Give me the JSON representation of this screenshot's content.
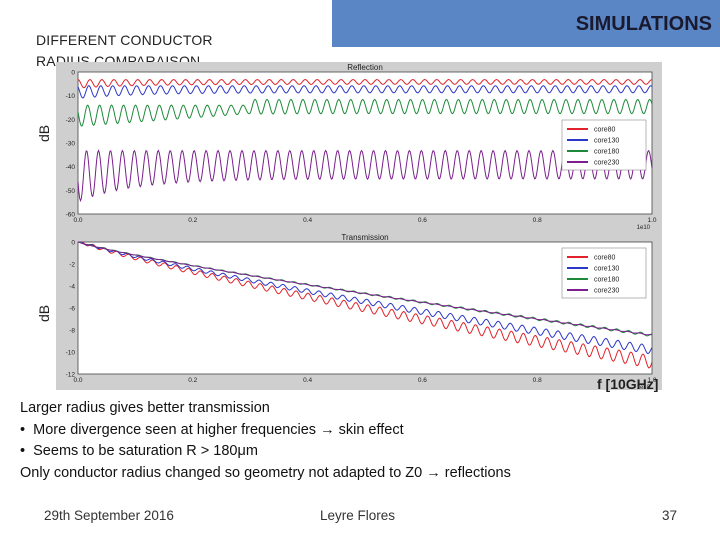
{
  "slide": {
    "title": "SIMULATIONS",
    "subtitle_line1": "DIFFERENT CONDUCTOR",
    "subtitle_line2": "RADIUS COMPARAISON",
    "ylabel_top": "dB",
    "ylabel_bottom": "dB",
    "freq_label": "f [10GHz]",
    "body": [
      "Larger radius gives better transmission",
      "More divergence seen at higher frequencies → skin effect",
      "Seems to be saturation R > 180μm",
      "Only conductor radius changed so geometry not adapted to Z0 → reflections"
    ],
    "footer_date": "29th September 2016",
    "footer_author": "Leyre Flores",
    "footer_page": "37"
  },
  "colors": {
    "banner": "#5b86c6",
    "core80": "#e0232a",
    "core130": "#2a36c8",
    "core180": "#1d8a3a",
    "core230": "#7a1f8c"
  },
  "chart_data": [
    {
      "type": "line",
      "title": "Reflection",
      "xlabel": "",
      "ylabel": "dB",
      "xlim": [
        0.0,
        1.0
      ],
      "ylim": [
        -60,
        0
      ],
      "x_ticks": [
        "0.0",
        "0.2",
        "0.4",
        "0.6",
        "0.8",
        "1.0"
      ],
      "y_ticks": [
        "0",
        "-10",
        "-20",
        "-30",
        "-40",
        "-50",
        "-60"
      ],
      "x_multiplier": "1e10",
      "legend": "right",
      "series": [
        {
          "name": "core80",
          "color": "#e0232a",
          "mean": -4,
          "ripple": 2
        },
        {
          "name": "core130",
          "color": "#2a36c8",
          "mean": -7,
          "ripple": 3
        },
        {
          "name": "core180",
          "color": "#1d8a3a",
          "mean": -14,
          "ripple": 6
        },
        {
          "name": "core230",
          "color": "#7a1f8c",
          "mean": -38,
          "ripple": 12
        }
      ]
    },
    {
      "type": "line",
      "title": "Transmission",
      "xlabel": "",
      "ylabel": "dB",
      "xlim": [
        0.0,
        1.0
      ],
      "ylim": [
        -12,
        0
      ],
      "x_ticks": [
        "0.0",
        "0.2",
        "0.4",
        "0.6",
        "0.8",
        "1.0"
      ],
      "y_ticks": [
        "0",
        "-2",
        "-4",
        "-6",
        "-8",
        "-10",
        "-12"
      ],
      "x_multiplier": "1e10",
      "legend": "top-right",
      "series": [
        {
          "name": "core80",
          "color": "#e0232a",
          "end": -11.5,
          "ripple": 0.9
        },
        {
          "name": "core130",
          "color": "#2a36c8",
          "end": -10.2,
          "ripple": 0.6
        },
        {
          "name": "core180",
          "color": "#1d8a3a",
          "end": -8.6,
          "ripple": 0.2
        },
        {
          "name": "core230",
          "color": "#7a1f8c",
          "end": -8.5,
          "ripple": 0.05
        }
      ]
    }
  ]
}
